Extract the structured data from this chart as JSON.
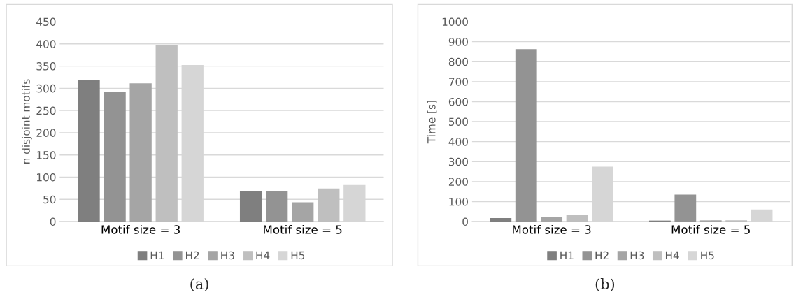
{
  "chart_data": [
    {
      "type": "bar",
      "ylabel": "n disjoint motifs",
      "categories": [
        "Motif size = 3",
        "Motif size = 5"
      ],
      "ylim": [
        0,
        450
      ],
      "yticks": [
        0,
        50,
        100,
        150,
        200,
        250,
        300,
        350,
        400,
        450
      ],
      "grid": "y",
      "legend": "bottom",
      "annotations": [
        "(a)"
      ],
      "series": [
        {
          "name": "H1",
          "color": "#7f7f7f",
          "values": [
            317,
            67
          ]
        },
        {
          "name": "H2",
          "color": "#939393",
          "values": [
            291,
            67
          ]
        },
        {
          "name": "H3",
          "color": "#a5a5a5",
          "values": [
            310,
            42
          ]
        },
        {
          "name": "H4",
          "color": "#bfbfbf",
          "values": [
            396,
            73
          ]
        },
        {
          "name": "H5",
          "color": "#d6d6d6",
          "values": [
            351,
            81
          ]
        }
      ]
    },
    {
      "type": "bar",
      "ylabel": "Time [s]",
      "categories": [
        "Motif size = 3",
        "Motif size = 5"
      ],
      "ylim": [
        0,
        1000
      ],
      "yticks": [
        0,
        100,
        200,
        300,
        400,
        500,
        600,
        700,
        800,
        900,
        1000
      ],
      "grid": "y",
      "legend": "bottom",
      "annotations": [
        "(b)"
      ],
      "series": [
        {
          "name": "H1",
          "color": "#7f7f7f",
          "values": [
            15,
            2
          ]
        },
        {
          "name": "H2",
          "color": "#939393",
          "values": [
            860,
            132
          ]
        },
        {
          "name": "H3",
          "color": "#a5a5a5",
          "values": [
            22,
            3
          ]
        },
        {
          "name": "H4",
          "color": "#bfbfbf",
          "values": [
            30,
            3
          ]
        },
        {
          "name": "H5",
          "color": "#d6d6d6",
          "values": [
            272,
            58
          ]
        }
      ]
    }
  ]
}
